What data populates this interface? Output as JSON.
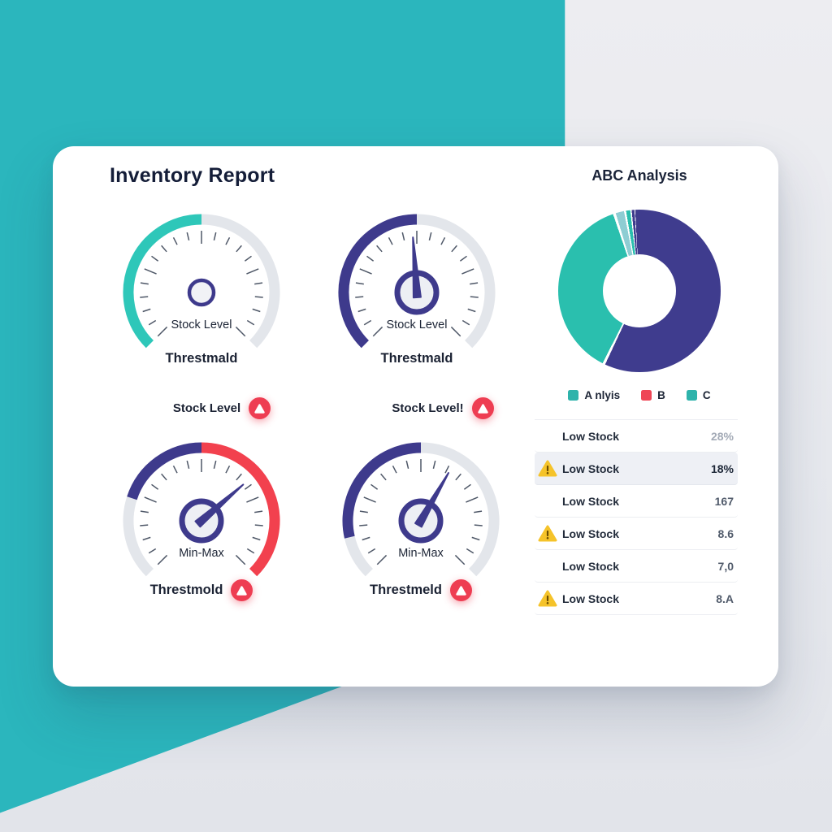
{
  "report": {
    "title": "Inventory Report"
  },
  "colors": {
    "background_teal": "#2bb6bd",
    "background_gray": "#e9ebef",
    "gauge_teal": "#2ec7b9",
    "gauge_indigo": "#3e3a8c",
    "gauge_red": "#f2414e",
    "gauge_track": "#e3e6eb",
    "badge_red": "#ee3d52",
    "warning_yellow": "#f5c32a",
    "donut_navy": "#3f3c8e",
    "donut_teal": "#2abfae",
    "donut_light_teal": "#8ecdd3"
  },
  "gauges": [
    {
      "label": "Stock Level",
      "sublabel": "Threstmald",
      "segments": [
        {
          "from": 135,
          "to": 270,
          "color": "#2ec7b9"
        },
        {
          "from": 270,
          "to": 405,
          "color": "#e3e6eb"
        }
      ],
      "needle": null,
      "center": "small",
      "badge": false
    },
    {
      "label": "Stock Level",
      "sublabel": "Threstmald",
      "segments": [
        {
          "from": 135,
          "to": 270,
          "color": "#3e3a8c"
        },
        {
          "from": 270,
          "to": 405,
          "color": "#e3e6eb"
        }
      ],
      "needle": 266,
      "center": "large",
      "badge": false
    },
    {
      "label": "Min-Max",
      "sublabel": "Threstmold",
      "segments": [
        {
          "from": 135,
          "to": 198,
          "color": "#e3e6eb"
        },
        {
          "from": 198,
          "to": 270,
          "color": "#3e3a8c"
        },
        {
          "from": 270,
          "to": 405,
          "color": "#f2414e"
        }
      ],
      "needle": 319,
      "center": "large",
      "badge": true
    },
    {
      "label": "Min-Max",
      "sublabel": "Threstmeld",
      "segments": [
        {
          "from": 135,
          "to": 167,
          "color": "#e3e6eb"
        },
        {
          "from": 167,
          "to": 270,
          "color": "#3e3a8c"
        },
        {
          "from": 270,
          "to": 405,
          "color": "#e3e6eb"
        }
      ],
      "needle": 300,
      "center": "large",
      "badge": true
    }
  ],
  "alerts": [
    {
      "label": "Stock Level"
    },
    {
      "label": "Stock Level!"
    }
  ],
  "abc": {
    "title": "ABC Analysis",
    "donut": {
      "rotation": -3,
      "segments": [
        {
          "name": "A",
          "color": "#3f3c8e",
          "from": 0,
          "to": 208
        },
        {
          "name": "B",
          "color": "#2abfae",
          "from": 210,
          "to": 344
        },
        {
          "name": "sliver-1",
          "color": "#8ecdd3",
          "from": 346,
          "to": 352
        },
        {
          "name": "sliver-2",
          "color": "#2abfae",
          "from": 353.5,
          "to": 356.5
        },
        {
          "name": "sliver-3",
          "color": "#3f3c8e",
          "from": 357.5,
          "to": 359.5
        }
      ]
    },
    "legend": [
      {
        "label": "A nlyis",
        "color": "#2eb3ab"
      },
      {
        "label": "B",
        "color": "#ef4656"
      },
      {
        "label": "C",
        "color": "#2eb3ab"
      }
    ],
    "rows": [
      {
        "label": "Low Stock",
        "value": "28%",
        "warning": false,
        "highlighted": false
      },
      {
        "label": "Low Stock",
        "value": "18%",
        "warning": true,
        "highlighted": true
      },
      {
        "label": "Low Stock",
        "value": "167",
        "warning": false,
        "highlighted": false
      },
      {
        "label": "Low Stock",
        "value": "8.6",
        "warning": true,
        "highlighted": false
      },
      {
        "label": "Low Stock",
        "value": "7,0",
        "warning": false,
        "highlighted": false
      },
      {
        "label": "Low Stock",
        "value": "8.A",
        "warning": true,
        "highlighted": false
      }
    ]
  }
}
